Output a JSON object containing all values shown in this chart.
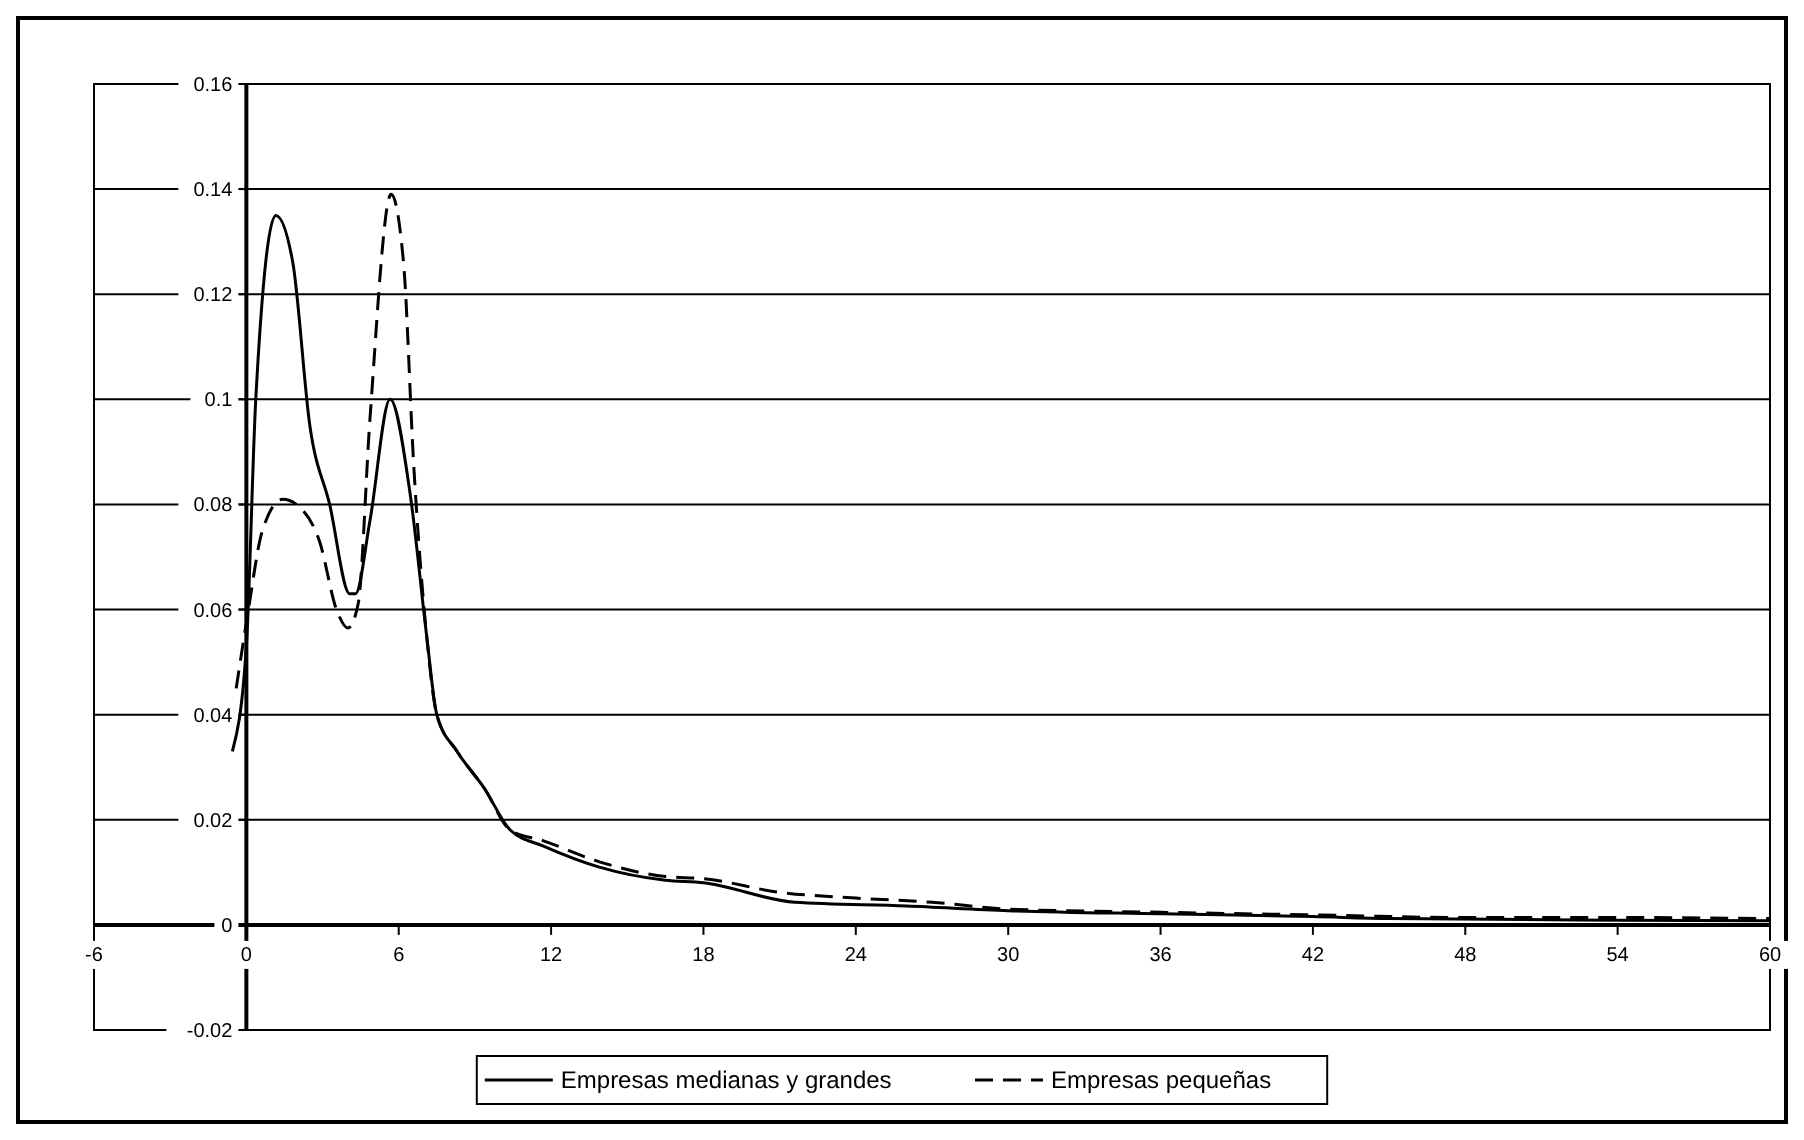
{
  "chart_data": {
    "type": "line",
    "xlim": [
      -6,
      60
    ],
    "xticks": [
      -6,
      0,
      6,
      12,
      18,
      24,
      30,
      36,
      42,
      48,
      54,
      60
    ],
    "ylim": [
      -0.02,
      0.16
    ],
    "yticks": [
      -0.02,
      0,
      0.02,
      0.04,
      0.06,
      0.08,
      0.1,
      0.12,
      0.14,
      0.16
    ],
    "grid": "y",
    "legend": "bottom",
    "marker": "none",
    "series": [
      {
        "name": "Empresas medianas y grandes",
        "color": "#000000",
        "line_style": "solid",
        "x": [
          -0.55,
          0,
          0.37,
          1.16,
          1.83,
          2.5,
          3.28,
          4.07,
          4.3,
          4.87,
          5.66,
          6.45,
          7.1,
          7.5,
          8.3,
          9.37,
          10.4,
          11.7,
          13.9,
          16.5,
          18,
          21.6,
          26,
          30,
          36,
          42,
          45,
          54,
          60
        ],
        "values": [
          0.033,
          0.053,
          0.1,
          0.135,
          0.126,
          0.095,
          0.08,
          0.063,
          0.063,
          0.077,
          0.1,
          0.082,
          0.055,
          0.04,
          0.033,
          0.026,
          0.018,
          0.015,
          0.011,
          0.0085,
          0.008,
          0.0043,
          0.0036,
          0.0027,
          0.0021,
          0.0016,
          0.0012,
          0.0009,
          0.0008
        ]
      },
      {
        "name": "Empresas pequeñas",
        "color": "#000000",
        "line_style": "dashed",
        "x": [
          -0.4,
          0.05,
          0.63,
          1.43,
          2.2,
          2.88,
          3.55,
          4.0,
          4.4,
          4.87,
          5.7,
          6.19,
          6.59,
          7.1,
          7.5,
          8.3,
          9.37,
          10.4,
          11.7,
          13.9,
          16.5,
          18,
          21,
          24,
          27,
          30,
          36,
          42,
          48,
          54,
          60
        ],
        "values": [
          0.045,
          0.059,
          0.075,
          0.081,
          0.079,
          0.073,
          0.06,
          0.0565,
          0.061,
          0.0965,
          0.139,
          0.126,
          0.0875,
          0.055,
          0.04,
          0.033,
          0.026,
          0.018,
          0.016,
          0.012,
          0.0092,
          0.0088,
          0.0062,
          0.0051,
          0.0043,
          0.003,
          0.0024,
          0.0019,
          0.0014,
          0.0014,
          0.0012
        ]
      }
    ]
  }
}
